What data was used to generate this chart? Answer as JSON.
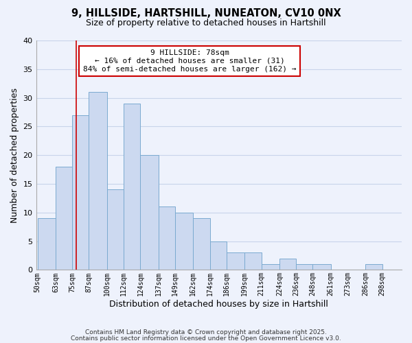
{
  "title1": "9, HILLSIDE, HARTSHILL, NUNEATON, CV10 0NX",
  "title2": "Size of property relative to detached houses in Hartshill",
  "xlabel": "Distribution of detached houses by size in Hartshill",
  "ylabel": "Number of detached properties",
  "bar_values": [
    9,
    18,
    27,
    31,
    14,
    29,
    20,
    11,
    10,
    9,
    5,
    3,
    3,
    1,
    2,
    1,
    1,
    0,
    0,
    1
  ],
  "bin_edges": [
    50,
    63,
    75,
    87,
    100,
    112,
    124,
    137,
    149,
    162,
    174,
    186,
    199,
    211,
    224,
    236,
    248,
    261,
    273,
    286,
    298
  ],
  "xtick_labels": [
    "50sqm",
    "63sqm",
    "75sqm",
    "87sqm",
    "100sqm",
    "112sqm",
    "124sqm",
    "137sqm",
    "149sqm",
    "162sqm",
    "174sqm",
    "186sqm",
    "199sqm",
    "211sqm",
    "224sqm",
    "236sqm",
    "248sqm",
    "261sqm",
    "273sqm",
    "286sqm",
    "298sqm"
  ],
  "bar_color": "#ccd9f0",
  "bar_edgecolor": "#7aaad0",
  "vline_x": 78,
  "vline_color": "#cc0000",
  "ylim": [
    0,
    40
  ],
  "yticks": [
    0,
    5,
    10,
    15,
    20,
    25,
    30,
    35,
    40
  ],
  "annotation_title": "9 HILLSIDE: 78sqm",
  "annotation_line1": "← 16% of detached houses are smaller (31)",
  "annotation_line2": "84% of semi-detached houses are larger (162) →",
  "annotation_box_edgecolor": "#cc0000",
  "grid_color": "#c8d4ea",
  "background_color": "#eef2fc",
  "footnote1": "Contains HM Land Registry data © Crown copyright and database right 2025.",
  "footnote2": "Contains public sector information licensed under the Open Government Licence v3.0."
}
